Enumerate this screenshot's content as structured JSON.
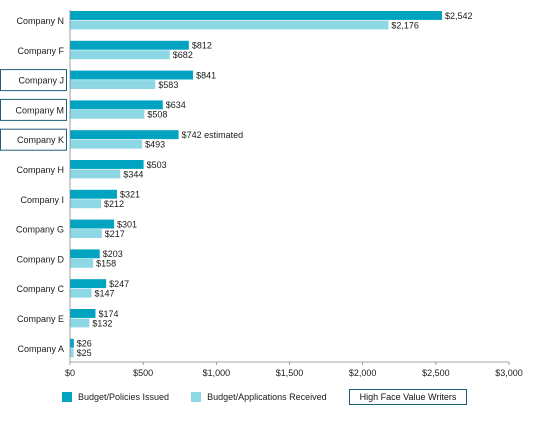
{
  "chart_data": {
    "type": "bar",
    "orientation": "horizontal",
    "categories": [
      "Company N",
      "Company F",
      "Company J",
      "Company M",
      "Company K",
      "Company H",
      "Company I",
      "Company G",
      "Company D",
      "Company C",
      "Company E",
      "Company A"
    ],
    "highlighted_categories": [
      "Company J",
      "Company M",
      "Company K"
    ],
    "series": [
      {
        "name": "Budget/Policies Issued",
        "color": "#00a3c0",
        "values": [
          2542,
          812,
          841,
          634,
          742,
          503,
          321,
          301,
          203,
          247,
          174,
          26
        ],
        "labels": [
          "$2,542",
          "$812",
          "$841",
          "$634",
          "$742 estimated",
          "$503",
          "$321",
          "$301",
          "$203",
          "$247",
          "$174",
          "$26"
        ]
      },
      {
        "name": "Budget/Applications Received",
        "color": "#8ed8e6",
        "values": [
          2176,
          682,
          583,
          508,
          493,
          344,
          212,
          217,
          158,
          147,
          132,
          25
        ],
        "labels": [
          "$2,176",
          "$682",
          "$583",
          "$508",
          "$493",
          "$344",
          "$212",
          "$217",
          "$158",
          "$147",
          "$132",
          "$25"
        ]
      }
    ],
    "x_ticks": [
      0,
      500,
      1000,
      1500,
      2000,
      2500,
      3000
    ],
    "x_tick_labels": [
      "$0",
      "$500",
      "$1,000",
      "$1,500",
      "$2,000",
      "$2,500",
      "$3,000"
    ],
    "xlim": [
      0,
      3000
    ],
    "grid": false,
    "legend_position": "bottom",
    "highlight_legend_label": "High Face Value Writers"
  }
}
